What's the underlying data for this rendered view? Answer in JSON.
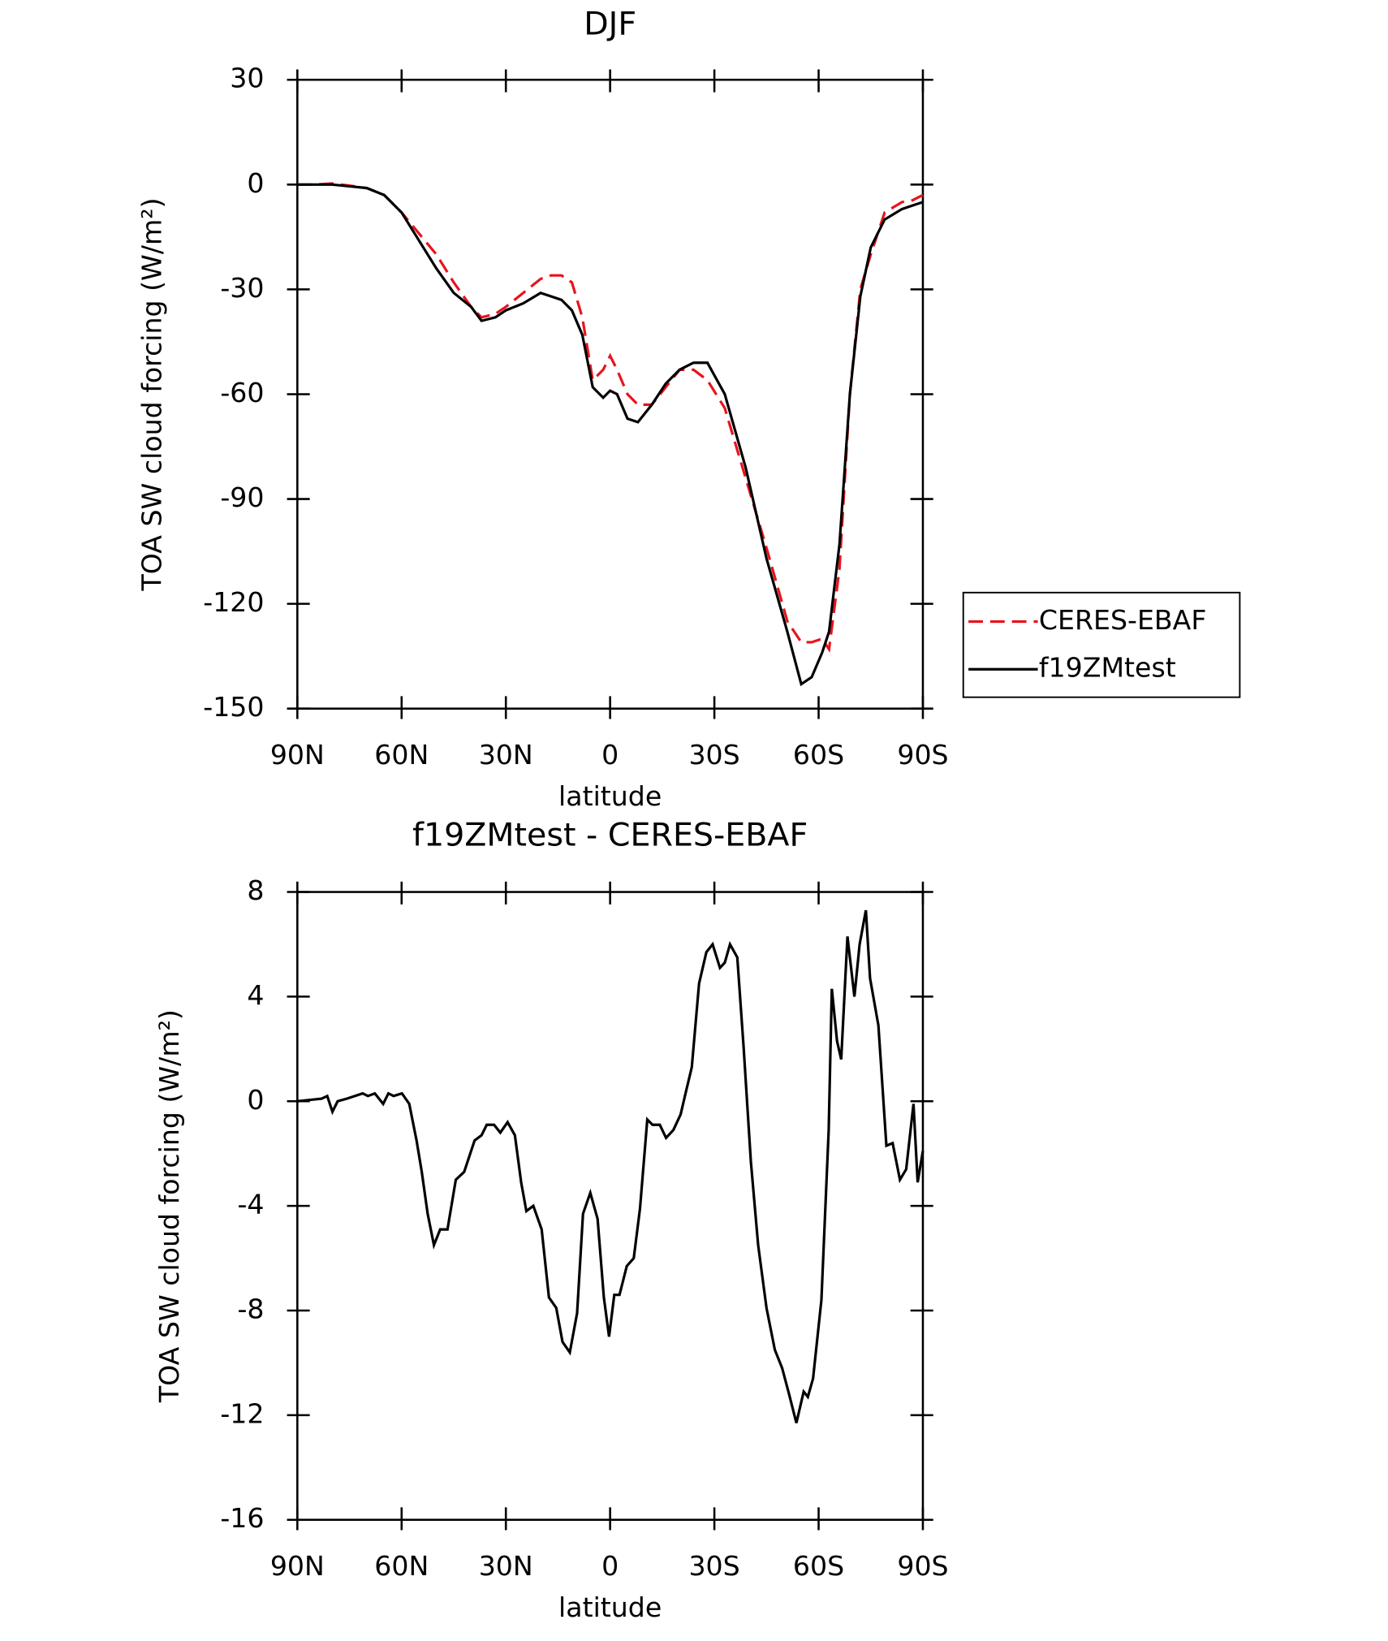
{
  "chart_data": [
    {
      "type": "line",
      "title": "DJF",
      "xlabel": "latitude",
      "ylabel": "TOA SW cloud forcing (W/m²)",
      "x": [
        90,
        85,
        80,
        75,
        70,
        65,
        60,
        55,
        50,
        45,
        40,
        37,
        33,
        30,
        25,
        20,
        17,
        14,
        11,
        8,
        5,
        2,
        0,
        -2,
        -5,
        -8,
        -12,
        -16,
        -20,
        -24,
        -28,
        -33,
        -39,
        -45,
        -51,
        -55,
        -58,
        -61,
        -63,
        -66,
        -69,
        -72,
        -75,
        -79,
        -84,
        -87,
        -90
      ],
      "series": [
        {
          "name": "CERES-EBAF",
          "color": "#e8141c",
          "dashed": true,
          "values": [
            0,
            0,
            0.3,
            -0.3,
            -1,
            -3,
            -8,
            -14,
            -20,
            -28,
            -35,
            -38,
            -37,
            -35,
            -31,
            -27,
            -26,
            -26,
            -28,
            -38,
            -56,
            -53,
            -49,
            -53,
            -60,
            -63,
            -63,
            -58,
            -53,
            -53,
            -56,
            -64,
            -84,
            -104,
            -125,
            -131,
            -131,
            -130,
            -133,
            -110,
            -60,
            -30,
            -20,
            -8,
            -5,
            -4.5,
            -3
          ]
        },
        {
          "name": "f19ZMtest",
          "color": "#000000",
          "dashed": false,
          "values": [
            0,
            0,
            0,
            -0.5,
            -1,
            -3,
            -8,
            -16,
            -24,
            -31,
            -35,
            -39,
            -38,
            -36,
            -34,
            -31,
            -32,
            -33,
            -36,
            -43,
            -58,
            -61,
            -59,
            -60,
            -67,
            -68,
            -63,
            -57,
            -53,
            -51,
            -51,
            -60,
            -81,
            -107,
            -128,
            -143,
            -141,
            -134,
            -128,
            -103,
            -60,
            -32,
            -18,
            -10,
            -7,
            -6,
            -5
          ]
        }
      ],
      "xlim": [
        90,
        -90
      ],
      "xticks": [
        {
          "value": 90,
          "label": "90N"
        },
        {
          "value": 60,
          "label": "60N"
        },
        {
          "value": 30,
          "label": "30N"
        },
        0,
        {
          "value": -30,
          "label": "30S"
        },
        {
          "value": -60,
          "label": "60S"
        },
        {
          "value": -90,
          "label": "90S"
        }
      ],
      "ylim": [
        -150,
        30
      ],
      "yticks": [
        -150,
        -120,
        -90,
        -60,
        -30,
        0,
        30
      ],
      "legend": "right"
    },
    {
      "type": "line",
      "title": "f19ZMtest - CERES-EBAF",
      "xlabel": "latitude",
      "ylabel": "TOA SW cloud forcing (W/m²)",
      "x": [
        90,
        83,
        81.4,
        79.9,
        78.4,
        75.7,
        71.2,
        69.7,
        67.7,
        65.3,
        63.8,
        62.3,
        59.9,
        57.8,
        55.7,
        54.2,
        52.5,
        50.7,
        48.9,
        46.8,
        44.4,
        42,
        39,
        37,
        35.5,
        33.4,
        31.6,
        29.5,
        27.4,
        25.6,
        24.1,
        22.1,
        19.7,
        17.6,
        15.5,
        13.7,
        11.6,
        9.5,
        7.8,
        5.7,
        3.6,
        1.8,
        0.3,
        -1.2,
        -2.7,
        -4.8,
        -6.8,
        -8.6,
        -10.7,
        -12.2,
        -14.3,
        -16.1,
        -18.2,
        -20.3,
        -21.7,
        -23.5,
        -25.6,
        -27.7,
        -29.5,
        -31.6,
        -33,
        -34.5,
        -36.6,
        -38.4,
        -40.5,
        -42.6,
        -45,
        -47.4,
        -49.5,
        -51.5,
        -53.6,
        -55.7,
        -56.9,
        -58.4,
        -60.8,
        -62.9,
        -63.8,
        -65.3,
        -66.5,
        -68.3,
        -70.3,
        -71.8,
        -73.6,
        -74.8,
        -77.2,
        -79.5,
        -81.3,
        -83.4,
        -85.2,
        -87.3,
        -88.5,
        -90
      ],
      "values": [
        0,
        0.1,
        0.2,
        -0.4,
        0,
        0.1,
        0.3,
        0.2,
        0.3,
        -0.1,
        0.3,
        0.2,
        0.3,
        -0.1,
        -1.5,
        -2.7,
        -4.3,
        -5.5,
        -4.9,
        -4.9,
        -3,
        -2.7,
        -1.5,
        -1.3,
        -0.9,
        -0.9,
        -1.2,
        -0.8,
        -1.3,
        -3.1,
        -4.2,
        -4,
        -4.9,
        -7.5,
        -7.9,
        -9.2,
        -9.6,
        -8.1,
        -4.3,
        -3.5,
        -4.5,
        -7.5,
        -9,
        -7.4,
        -7.4,
        -6.3,
        -6,
        -4.1,
        -0.7,
        -0.9,
        -0.9,
        -1.4,
        -1.1,
        -0.5,
        0.3,
        1.3,
        4.5,
        5.7,
        6,
        5.1,
        5.3,
        6,
        5.5,
        2.1,
        -2.3,
        -5.5,
        -7.9,
        -9.5,
        -10.2,
        -11.2,
        -12.3,
        -11.1,
        -11.3,
        -10.6,
        -7.6,
        -1.1,
        4.3,
        2.3,
        1.6,
        6.3,
        4,
        6,
        7.3,
        4.7,
        2.9,
        -1.7,
        -1.6,
        -3,
        -2.6,
        -0.1,
        -3.1,
        -1.9
      ],
      "color": "#000000",
      "xlim": [
        90,
        -90
      ],
      "xticks": [
        {
          "value": 90,
          "label": "90N"
        },
        {
          "value": 60,
          "label": "60N"
        },
        {
          "value": 30,
          "label": "30N"
        },
        0,
        {
          "value": -30,
          "label": "30S"
        },
        {
          "value": -60,
          "label": "60S"
        },
        {
          "value": -90,
          "label": "90S"
        }
      ],
      "ylim": [
        -16,
        8
      ],
      "yticks": [
        -16,
        -12,
        -8,
        -4,
        0,
        4,
        8
      ]
    }
  ]
}
